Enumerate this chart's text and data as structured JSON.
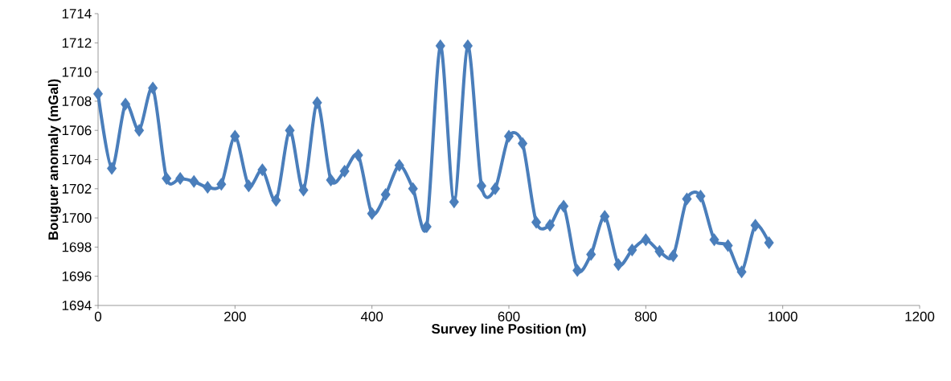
{
  "chart_data": {
    "type": "line",
    "xlabel": "Survey line Position (m)",
    "ylabel": "Bouguer anomaly (mGal)",
    "x": [
      0,
      20,
      40,
      60,
      80,
      100,
      120,
      140,
      160,
      180,
      200,
      220,
      240,
      260,
      280,
      300,
      320,
      340,
      360,
      380,
      400,
      420,
      440,
      460,
      480,
      500,
      520,
      540,
      560,
      580,
      600,
      620,
      640,
      660,
      680,
      700,
      720,
      740,
      760,
      780,
      800,
      820,
      840,
      860,
      880,
      900,
      920,
      940,
      960,
      980
    ],
    "series": [
      {
        "color": "#4a7ebb",
        "values": [
          1708.5,
          1703.4,
          1707.8,
          1706.0,
          1708.9,
          1702.7,
          1702.7,
          1702.5,
          1702.1,
          1702.3,
          1705.6,
          1702.2,
          1703.3,
          1701.2,
          1706.0,
          1701.9,
          1707.9,
          1702.6,
          1703.2,
          1704.3,
          1700.3,
          1701.6,
          1703.6,
          1702.0,
          1699.4,
          1711.8,
          1701.1,
          1711.8,
          1702.2,
          1702.0,
          1705.6,
          1705.1,
          1699.7,
          1699.5,
          1700.8,
          1696.4,
          1697.5,
          1700.1,
          1696.8,
          1697.8,
          1698.5,
          1697.7,
          1697.4,
          1701.3,
          1701.5,
          1698.5,
          1698.1,
          1696.3,
          1699.5,
          1698.3
        ]
      }
    ],
    "xlim": [
      0,
      1200
    ],
    "xticks": [
      0,
      200,
      400,
      600,
      800,
      1000,
      1200
    ],
    "ylim": [
      1694,
      1714
    ],
    "yticks": [
      1694,
      1696,
      1698,
      1700,
      1702,
      1704,
      1706,
      1708,
      1710,
      1712,
      1714
    ],
    "grid": false,
    "marker": "diamond",
    "line_style": "solid"
  }
}
